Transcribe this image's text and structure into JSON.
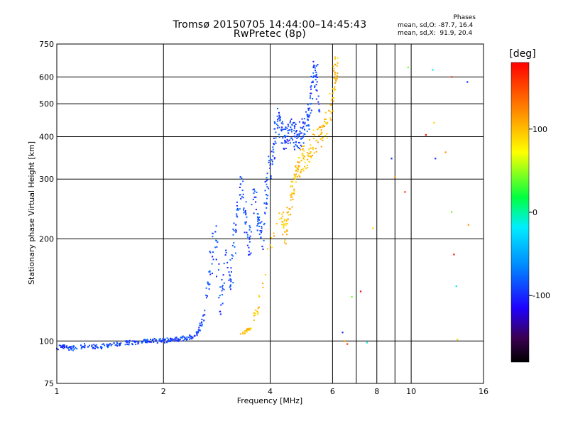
{
  "chart_data": {
    "type": "scatter",
    "title": "Tromsø 20150705 14:44:00–14:45:43",
    "subtitle": "RwPretec (8p)",
    "xlabel": "Frequency [MHz]",
    "ylabel": "Stationary phase Virtual Height [km]",
    "x_scale": "log",
    "y_scale": "log",
    "xlim": [
      1,
      16
    ],
    "ylim": [
      75,
      750
    ],
    "x_ticks": [
      1,
      2,
      4,
      6,
      8,
      10,
      16
    ],
    "x_minor_ticks": [
      7,
      9
    ],
    "y_ticks": [
      75,
      100,
      200,
      300,
      400,
      500,
      600,
      750
    ],
    "grid": true,
    "colorbar": {
      "label": "[deg]",
      "ticks": [
        100,
        0,
        -100
      ],
      "range": [
        -180,
        180
      ],
      "colormap": "rainbow"
    },
    "stats": {
      "heading": "Phases",
      "o_line": "mean, sd,O: -87.7, 16.4",
      "x_line": "mean, sd,X:  91.9, 20.4"
    },
    "series": [
      {
        "mode": "O",
        "color_value": -90,
        "points": [
          [
            1.0,
            95
          ],
          [
            1.05,
            97
          ],
          [
            1.1,
            95
          ],
          [
            1.2,
            97
          ],
          [
            1.3,
            96
          ],
          [
            1.4,
            97
          ],
          [
            1.5,
            98
          ],
          [
            1.6,
            99
          ],
          [
            1.7,
            99
          ],
          [
            1.8,
            100
          ],
          [
            1.9,
            100
          ],
          [
            2.0,
            100
          ],
          [
            2.1,
            101
          ],
          [
            2.2,
            101
          ],
          [
            2.3,
            102
          ],
          [
            2.4,
            103
          ],
          [
            2.5,
            106
          ],
          [
            2.6,
            115
          ],
          [
            2.7,
            160
          ],
          [
            2.8,
            210
          ],
          [
            2.9,
            120
          ],
          [
            3.0,
            185
          ],
          [
            3.1,
            150
          ],
          [
            3.2,
            220
          ],
          [
            3.3,
            290
          ],
          [
            3.4,
            240
          ],
          [
            3.5,
            180
          ],
          [
            3.6,
            280
          ],
          [
            3.7,
            230
          ],
          [
            3.8,
            190
          ],
          [
            3.9,
            270
          ],
          [
            4.0,
            330
          ],
          [
            4.1,
            380
          ],
          [
            4.2,
            450
          ],
          [
            4.3,
            420
          ],
          [
            4.4,
            390
          ],
          [
            4.5,
            410
          ],
          [
            4.6,
            420
          ],
          [
            4.7,
            400
          ],
          [
            4.8,
            400
          ],
          [
            4.9,
            410
          ],
          [
            5.0,
            420
          ],
          [
            5.1,
            450
          ],
          [
            5.2,
            500
          ],
          [
            5.3,
            640
          ],
          [
            5.4,
            600
          ],
          [
            5.5,
            480
          ]
        ]
      },
      {
        "mode": "X",
        "color_value": 100,
        "points": [
          [
            3.3,
            105
          ],
          [
            3.5,
            108
          ],
          [
            3.7,
            125
          ],
          [
            4.3,
            230
          ],
          [
            4.4,
            210
          ],
          [
            4.5,
            240
          ],
          [
            4.6,
            270
          ],
          [
            4.7,
            300
          ],
          [
            4.8,
            320
          ],
          [
            4.9,
            340
          ],
          [
            5.0,
            350
          ],
          [
            5.2,
            370
          ],
          [
            5.4,
            390
          ],
          [
            5.6,
            410
          ],
          [
            5.8,
            440
          ],
          [
            6.0,
            520
          ],
          [
            6.1,
            610
          ],
          [
            6.2,
            660
          ]
        ]
      },
      {
        "mode": "noise",
        "points": [
          [
            6.4,
            106
          ],
          [
            6.5,
            100
          ],
          [
            6.6,
            98
          ],
          [
            6.8,
            135
          ],
          [
            7.2,
            140
          ],
          [
            7.5,
            99
          ],
          [
            7.8,
            215
          ],
          [
            8.8,
            345
          ],
          [
            9.0,
            305
          ],
          [
            9.6,
            275
          ],
          [
            9.8,
            640
          ],
          [
            11.0,
            405
          ],
          [
            11.5,
            630
          ],
          [
            11.6,
            440
          ],
          [
            11.7,
            345
          ],
          [
            12.5,
            360
          ],
          [
            13.0,
            600
          ],
          [
            13.0,
            240
          ],
          [
            13.2,
            180
          ],
          [
            13.4,
            145
          ],
          [
            13.5,
            101
          ],
          [
            14.4,
            580
          ],
          [
            14.5,
            220
          ]
        ]
      }
    ]
  }
}
